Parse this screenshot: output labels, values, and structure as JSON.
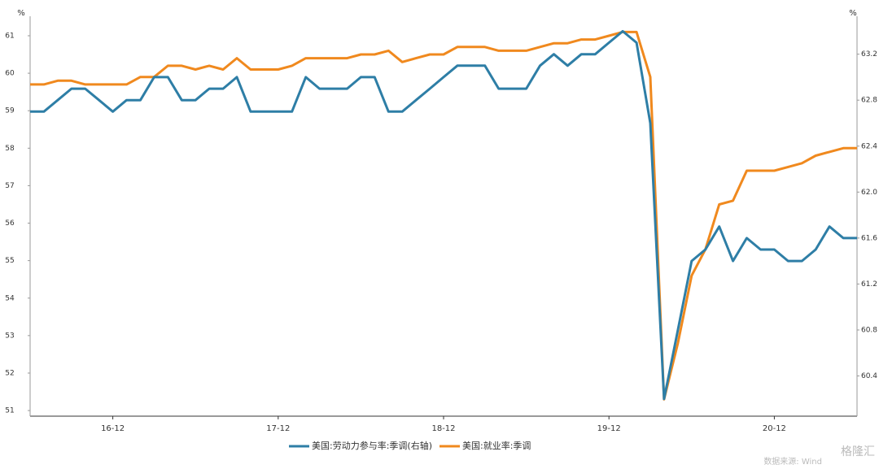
{
  "chart_data": {
    "type": "line",
    "y_unit": "%",
    "y2_unit": "%",
    "categories": [
      null,
      null,
      null,
      null,
      null,
      null,
      "16-12",
      null,
      null,
      null,
      null,
      null,
      null,
      null,
      null,
      null,
      null,
      null,
      "17-12",
      null,
      null,
      null,
      null,
      null,
      null,
      null,
      null,
      null,
      null,
      null,
      "18-12",
      null,
      null,
      null,
      null,
      null,
      null,
      null,
      null,
      null,
      null,
      null,
      "19-12",
      null,
      null,
      null,
      null,
      null,
      null,
      null,
      null,
      null,
      null,
      null,
      "20-12",
      null,
      null,
      null,
      null,
      null,
      null
    ],
    "series": [
      {
        "name": "美国:劳动力参与率:季调(右轴)",
        "color": "#2e7ea6",
        "axis": "y2",
        "values": [
          62.7,
          62.7,
          62.8,
          62.9,
          62.9,
          62.8,
          62.7,
          62.8,
          62.8,
          63.0,
          63.0,
          62.8,
          62.8,
          62.9,
          62.9,
          63.0,
          62.7,
          62.7,
          62.7,
          62.7,
          63.0,
          62.9,
          62.9,
          62.9,
          63.0,
          63.0,
          62.7,
          62.7,
          62.8,
          62.9,
          63.0,
          63.1,
          63.1,
          63.1,
          62.9,
          62.9,
          62.9,
          63.1,
          63.2,
          63.1,
          63.2,
          63.2,
          63.3,
          63.4,
          63.3,
          62.6,
          60.2,
          60.8,
          61.4,
          61.5,
          61.7,
          61.4,
          61.6,
          61.5,
          61.5,
          61.4,
          61.4,
          61.5,
          61.7,
          61.6,
          61.6
        ]
      },
      {
        "name": "美国:就业率:季调",
        "color": "#f0891e",
        "axis": "y",
        "values": [
          59.7,
          59.7,
          59.8,
          59.8,
          59.7,
          59.7,
          59.7,
          59.7,
          59.9,
          59.9,
          60.2,
          60.2,
          60.1,
          60.2,
          60.1,
          60.4,
          60.1,
          60.1,
          60.1,
          60.2,
          60.4,
          60.4,
          60.4,
          60.4,
          60.5,
          60.5,
          60.6,
          60.3,
          60.4,
          60.5,
          60.5,
          60.7,
          60.7,
          60.7,
          60.6,
          60.6,
          60.6,
          60.7,
          60.8,
          60.8,
          60.9,
          60.9,
          61.0,
          61.1,
          61.1,
          59.9,
          51.3,
          52.8,
          54.6,
          55.3,
          56.5,
          56.6,
          57.4,
          57.4,
          57.4,
          57.5,
          57.6,
          57.8,
          57.9,
          58.0,
          58.0
        ]
      }
    ],
    "ylim": [
      50.85,
      61.52
    ],
    "yticks": [
      51,
      52,
      53,
      54,
      55,
      56,
      57,
      58,
      59,
      60,
      61
    ],
    "y2lim": [
      60.05,
      63.53
    ],
    "y2ticks": [
      60.4,
      60.8,
      61.2,
      61.6,
      {
        "value": 62,
        "label": "62.0"
      },
      62.4,
      62.8,
      63.2
    ],
    "source": "数据来源: Wind",
    "watermark": "格隆汇"
  }
}
